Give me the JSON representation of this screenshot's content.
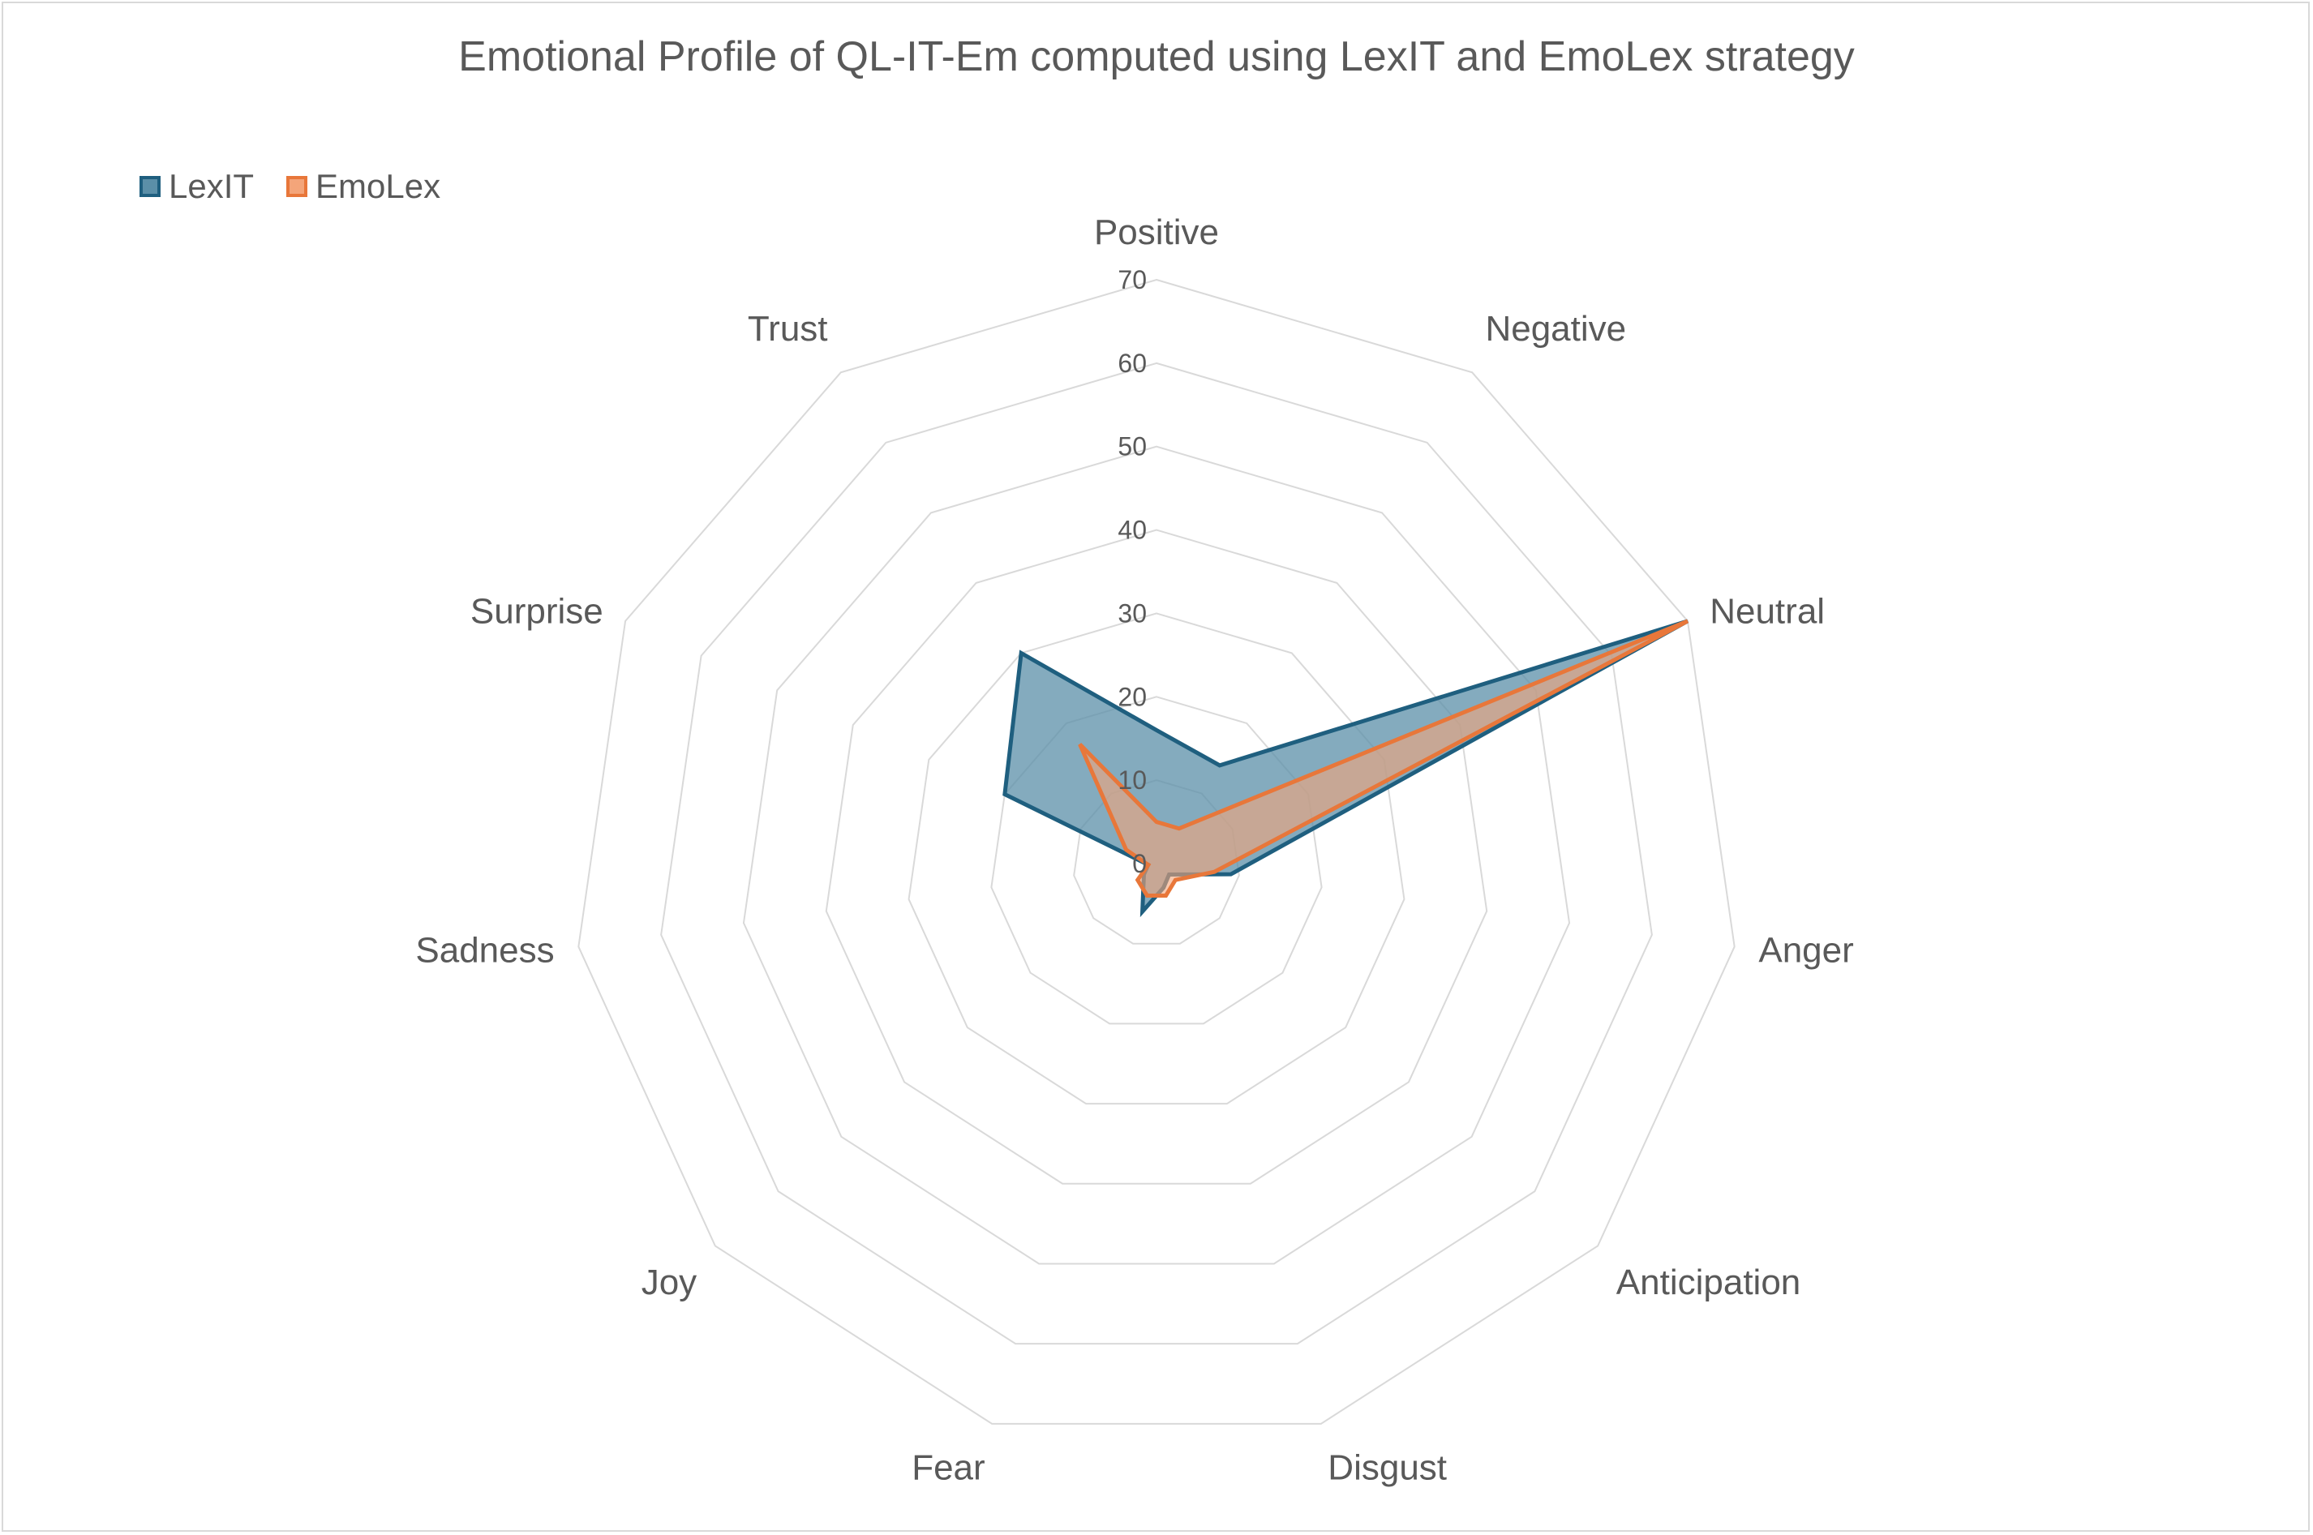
{
  "chart_data": {
    "type": "radar",
    "title": "Emotional Profile of QL-IT-Em computed using LexIT and EmoLex strategy",
    "categories": [
      "Positive",
      "Negative",
      "Neutral",
      "Anger",
      "Anticipation",
      "Disgust",
      "Fear",
      "Joy",
      "Sadness",
      "Surprise",
      "Trust"
    ],
    "series": [
      {
        "name": "LexIT",
        "values": [
          16,
          14,
          70,
          9,
          2,
          3,
          6,
          2,
          1,
          20,
          30
        ],
        "color": "#1f5f7f",
        "fill": "#5b8fa8"
      },
      {
        "name": "EmoLex",
        "values": [
          5,
          5,
          70,
          7,
          3,
          4,
          4,
          3,
          1,
          4,
          17
        ],
        "color": "#e8773a",
        "fill": "#f4a57a"
      }
    ],
    "rlim": [
      0,
      70
    ],
    "ticks": [
      0,
      10,
      20,
      30,
      40,
      50,
      60,
      70
    ],
    "legend_position": "top-left",
    "grid": true
  }
}
